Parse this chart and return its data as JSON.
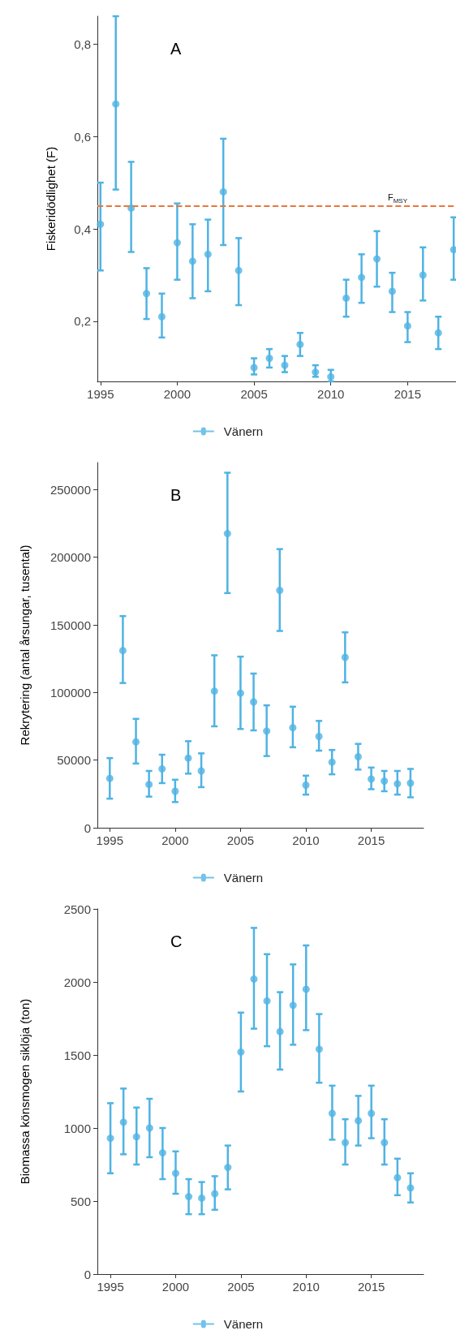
{
  "chart_data": [
    {
      "type": "scatter",
      "ylabel": "Fiskeridödlighet (F)",
      "annotations": [
        "A"
      ],
      "legend": "bottom",
      "grid": false,
      "marker": "circle",
      "x": [
        1995,
        1996,
        1997,
        1998,
        1999,
        2000,
        2001,
        2002,
        2003,
        2004,
        2005,
        2006,
        2007,
        2008,
        2009,
        2010,
        2011,
        2012,
        2013,
        2014,
        2015,
        2016,
        2017,
        2018
      ],
      "series": [
        {
          "name": "Vänern",
          "color": "#4fb3e3",
          "values": [
            0.41,
            0.67,
            0.445,
            0.26,
            0.21,
            0.37,
            0.33,
            0.345,
            0.48,
            0.31,
            0.1,
            0.12,
            0.105,
            0.15,
            0.09,
            0.08,
            0.25,
            0.295,
            0.335,
            0.265,
            0.19,
            0.3,
            0.175,
            0.355
          ],
          "errors": [
            [
              0.31,
              0.5
            ],
            [
              0.485,
              0.86
            ],
            [
              0.35,
              0.545
            ],
            [
              0.205,
              0.315
            ],
            [
              0.165,
              0.26
            ],
            [
              0.29,
              0.455
            ],
            [
              0.25,
              0.41
            ],
            [
              0.265,
              0.42
            ],
            [
              0.365,
              0.595
            ],
            [
              0.235,
              0.38
            ],
            [
              0.085,
              0.12
            ],
            [
              0.1,
              0.14
            ],
            [
              0.09,
              0.125
            ],
            [
              0.125,
              0.175
            ],
            [
              0.08,
              0.105
            ],
            [
              0.07,
              0.095
            ],
            [
              0.21,
              0.29
            ],
            [
              0.24,
              0.345
            ],
            [
              0.275,
              0.395
            ],
            [
              0.22,
              0.305
            ],
            [
              0.155,
              0.22
            ],
            [
              0.245,
              0.36
            ],
            [
              0.14,
              0.21
            ],
            [
              0.29,
              0.425
            ]
          ]
        }
      ],
      "xlim": [
        1994.8,
        2018.15
      ],
      "xticks": [
        1995,
        2000,
        2005,
        2010,
        2015
      ],
      "ylim": [
        0.07,
        0.86
      ],
      "yticks": [
        {
          "value": 0.2,
          "label": "0,2"
        },
        {
          "value": 0.4,
          "label": "0,4"
        },
        {
          "value": 0.6,
          "label": "0,6"
        },
        {
          "value": 0.8,
          "label": "0,8"
        }
      ],
      "ref_lines": [
        {
          "axis": "y",
          "value": 0.45,
          "label": "F$_{MSY}$",
          "color": "#e8773a",
          "line_style": "dashed"
        }
      ]
    },
    {
      "type": "scatter",
      "ylabel": "Rekrytering (antal årsungar, tusental)",
      "annotations": [
        "B"
      ],
      "legend": "bottom",
      "grid": false,
      "marker": "circle",
      "x": [
        1995,
        1996,
        1997,
        1998,
        1999,
        2000,
        2001,
        2002,
        2003,
        2004,
        2005,
        2006,
        2007,
        2008,
        2009,
        2010,
        2011,
        2012,
        2013,
        2014,
        2015,
        2016,
        2017,
        2018
      ],
      "series": [
        {
          "name": "Vänern",
          "color": "#4fb3e3",
          "values": [
            36500,
            131000,
            63500,
            32000,
            43500,
            27000,
            51500,
            42000,
            101000,
            217500,
            99500,
            93000,
            71500,
            175500,
            74000,
            31500,
            67500,
            48500,
            126000,
            52500,
            36000,
            34500,
            32500,
            33000
          ],
          "errors": [
            [
              21500,
              51500
            ],
            [
              107000,
              156500
            ],
            [
              47500,
              80500
            ],
            [
              23000,
              42000
            ],
            [
              33000,
              54000
            ],
            [
              19000,
              35500
            ],
            [
              40000,
              64000
            ],
            [
              30000,
              55000
            ],
            [
              75000,
              127500
            ],
            [
              173500,
              262500
            ],
            [
              73000,
              126500
            ],
            [
              72000,
              114000
            ],
            [
              53000,
              90500
            ],
            [
              145500,
              206000
            ],
            [
              59500,
              89500
            ],
            [
              24500,
              38500
            ],
            [
              57000,
              79000
            ],
            [
              39500,
              57500
            ],
            [
              107500,
              144500
            ],
            [
              43000,
              62000
            ],
            [
              28500,
              44500
            ],
            [
              27000,
              42000
            ],
            [
              24500,
              42000
            ],
            [
              22500,
              43500
            ]
          ]
        }
      ],
      "xlim": [
        1994.05,
        2019
      ],
      "xticks": [
        1995,
        2000,
        2005,
        2010,
        2015
      ],
      "ylim": [
        0,
        270000
      ],
      "yticks": [
        0,
        50000,
        100000,
        150000,
        200000,
        250000
      ]
    },
    {
      "type": "scatter",
      "ylabel": "Biomassa könsmogen siklöja (ton)",
      "annotations": [
        "C"
      ],
      "legend": "bottom",
      "grid": false,
      "marker": "circle",
      "x": [
        1995,
        1996,
        1997,
        1998,
        1999,
        2000,
        2001,
        2002,
        2003,
        2004,
        2005,
        2006,
        2007,
        2008,
        2009,
        2010,
        2011,
        2012,
        2013,
        2014,
        2015,
        2016,
        2017,
        2018
      ],
      "series": [
        {
          "name": "Vänern",
          "color": "#4fb3e3",
          "values": [
            930,
            1040,
            940,
            1000,
            830,
            690,
            530,
            520,
            550,
            730,
            1520,
            2020,
            1870,
            1660,
            1840,
            1950,
            1540,
            1100,
            900,
            1050,
            1100,
            900,
            660,
            590
          ],
          "errors": [
            [
              690,
              1170
            ],
            [
              820,
              1270
            ],
            [
              750,
              1140
            ],
            [
              800,
              1200
            ],
            [
              650,
              1000
            ],
            [
              550,
              840
            ],
            [
              410,
              650
            ],
            [
              410,
              630
            ],
            [
              440,
              670
            ],
            [
              580,
              880
            ],
            [
              1250,
              1790
            ],
            [
              1680,
              2370
            ],
            [
              1560,
              2190
            ],
            [
              1400,
              1930
            ],
            [
              1570,
              2120
            ],
            [
              1670,
              2250
            ],
            [
              1310,
              1780
            ],
            [
              920,
              1290
            ],
            [
              750,
              1060
            ],
            [
              880,
              1220
            ],
            [
              930,
              1290
            ],
            [
              750,
              1060
            ],
            [
              540,
              790
            ],
            [
              490,
              690
            ]
          ]
        }
      ],
      "xlim": [
        1994,
        2019
      ],
      "xticks": [
        1995,
        2000,
        2005,
        2010,
        2015
      ],
      "ylim": [
        0,
        2500
      ],
      "yticks": [
        0,
        500,
        1000,
        1500,
        2000,
        2500
      ]
    }
  ]
}
